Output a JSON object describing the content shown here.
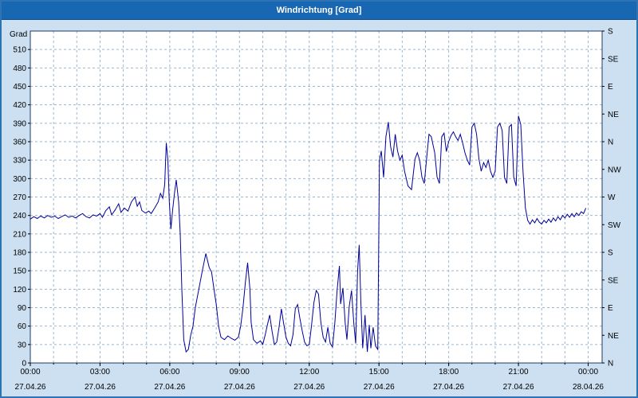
{
  "window": {
    "title": "Windrichtung [Grad]"
  },
  "colors": {
    "titlebar_bg": "#1767b2",
    "title_text": "#ffffff",
    "window_bg": "#cce0f2",
    "window_border": "#2e74b5",
    "plot_bg": "#ffffff",
    "plot_border": "#1f3864",
    "grid": "#9db6d0",
    "line": "#000099",
    "text": "#000000"
  },
  "chart_data": {
    "type": "line",
    "title": "Windrichtung [Grad]",
    "ylabel": "Grad",
    "xlabel": "",
    "ylim": [
      0,
      540
    ],
    "xlim_hours": [
      0,
      24.6
    ],
    "grid": {
      "vertical_every_hours": 1,
      "horizontal_every_deg": 30,
      "style": "dashed"
    },
    "legend_position": "none",
    "y_left_ticks": [
      0,
      30,
      60,
      90,
      120,
      150,
      180,
      210,
      240,
      270,
      300,
      330,
      360,
      390,
      420,
      450,
      480,
      510
    ],
    "y_right_labels": [
      {
        "deg": 540,
        "label": "S"
      },
      {
        "deg": 495,
        "label": "SE"
      },
      {
        "deg": 450,
        "label": "E"
      },
      {
        "deg": 405,
        "label": "NE"
      },
      {
        "deg": 360,
        "label": "N"
      },
      {
        "deg": 315,
        "label": "NW"
      },
      {
        "deg": 270,
        "label": "W"
      },
      {
        "deg": 225,
        "label": "SW"
      },
      {
        "deg": 180,
        "label": "S"
      },
      {
        "deg": 135,
        "label": "SE"
      },
      {
        "deg": 90,
        "label": "E"
      },
      {
        "deg": 45,
        "label": "NE"
      },
      {
        "deg": 0,
        "label": "N"
      }
    ],
    "x_ticks": [
      {
        "hour": 0,
        "time": "00:00",
        "date": "27.04.26"
      },
      {
        "hour": 3,
        "time": "03:00",
        "date": "27.04.26"
      },
      {
        "hour": 6,
        "time": "06:00",
        "date": "27.04.26"
      },
      {
        "hour": 9,
        "time": "09:00",
        "date": "27.04.26"
      },
      {
        "hour": 12,
        "time": "12:00",
        "date": "27.04.26"
      },
      {
        "hour": 15,
        "time": "15:00",
        "date": "27.04.26"
      },
      {
        "hour": 18,
        "time": "18:00",
        "date": "27.04.26"
      },
      {
        "hour": 21,
        "time": "21:00",
        "date": "27.04.26"
      },
      {
        "hour": 24,
        "time": "00:00",
        "date": "28.04.26"
      }
    ],
    "series": [
      {
        "name": "Windrichtung",
        "points": [
          [
            0,
            234
          ],
          [
            0.15,
            238
          ],
          [
            0.3,
            235
          ],
          [
            0.45,
            239
          ],
          [
            0.6,
            236
          ],
          [
            0.75,
            240
          ],
          [
            0.9,
            237
          ],
          [
            1.05,
            239
          ],
          [
            1.2,
            235
          ],
          [
            1.35,
            238
          ],
          [
            1.5,
            241
          ],
          [
            1.65,
            237
          ],
          [
            1.8,
            239
          ],
          [
            1.95,
            236
          ],
          [
            2.1,
            240
          ],
          [
            2.25,
            243
          ],
          [
            2.4,
            238
          ],
          [
            2.55,
            236
          ],
          [
            2.7,
            241
          ],
          [
            2.85,
            239
          ],
          [
            3,
            243
          ],
          [
            3.1,
            237
          ],
          [
            3.25,
            248
          ],
          [
            3.4,
            254
          ],
          [
            3.5,
            241
          ],
          [
            3.65,
            249
          ],
          [
            3.8,
            259
          ],
          [
            3.9,
            245
          ],
          [
            4.05,
            252
          ],
          [
            4.2,
            247
          ],
          [
            4.35,
            262
          ],
          [
            4.5,
            270
          ],
          [
            4.6,
            255
          ],
          [
            4.7,
            262
          ],
          [
            4.8,
            248
          ],
          [
            4.95,
            244
          ],
          [
            5.1,
            247
          ],
          [
            5.2,
            243
          ],
          [
            5.35,
            252
          ],
          [
            5.5,
            262
          ],
          [
            5.6,
            276
          ],
          [
            5.7,
            268
          ],
          [
            5.78,
            290
          ],
          [
            5.85,
            358
          ],
          [
            5.92,
            330
          ],
          [
            5.98,
            262
          ],
          [
            6.05,
            218
          ],
          [
            6.12,
            248
          ],
          [
            6.2,
            275
          ],
          [
            6.28,
            298
          ],
          [
            6.38,
            262
          ],
          [
            6.45,
            210
          ],
          [
            6.52,
            120
          ],
          [
            6.6,
            38
          ],
          [
            6.7,
            18
          ],
          [
            6.8,
            22
          ],
          [
            6.9,
            45
          ],
          [
            7,
            60
          ],
          [
            7.1,
            90
          ],
          [
            7.25,
            120
          ],
          [
            7.4,
            150
          ],
          [
            7.55,
            178
          ],
          [
            7.7,
            155
          ],
          [
            7.8,
            148
          ],
          [
            7.9,
            120
          ],
          [
            8,
            95
          ],
          [
            8.1,
            60
          ],
          [
            8.2,
            42
          ],
          [
            8.35,
            38
          ],
          [
            8.5,
            44
          ],
          [
            8.65,
            40
          ],
          [
            8.8,
            37
          ],
          [
            8.95,
            42
          ],
          [
            9.05,
            60
          ],
          [
            9.15,
            90
          ],
          [
            9.25,
            130
          ],
          [
            9.35,
            163
          ],
          [
            9.45,
            120
          ],
          [
            9.5,
            66
          ],
          [
            9.6,
            38
          ],
          [
            9.75,
            32
          ],
          [
            9.9,
            36
          ],
          [
            10,
            30
          ],
          [
            10.1,
            45
          ],
          [
            10.2,
            62
          ],
          [
            10.3,
            78
          ],
          [
            10.4,
            52
          ],
          [
            10.5,
            30
          ],
          [
            10.6,
            34
          ],
          [
            10.7,
            58
          ],
          [
            10.8,
            88
          ],
          [
            10.9,
            64
          ],
          [
            11,
            42
          ],
          [
            11.1,
            32
          ],
          [
            11.2,
            28
          ],
          [
            11.3,
            46
          ],
          [
            11.4,
            88
          ],
          [
            11.5,
            95
          ],
          [
            11.6,
            72
          ],
          [
            11.7,
            52
          ],
          [
            11.8,
            34
          ],
          [
            11.9,
            28
          ],
          [
            12,
            30
          ],
          [
            12.1,
            62
          ],
          [
            12.2,
            98
          ],
          [
            12.3,
            118
          ],
          [
            12.4,
            112
          ],
          [
            12.5,
            66
          ],
          [
            12.6,
            42
          ],
          [
            12.7,
            34
          ],
          [
            12.8,
            58
          ],
          [
            12.9,
            32
          ],
          [
            13,
            26
          ],
          [
            13.1,
            64
          ],
          [
            13.2,
            118
          ],
          [
            13.3,
            158
          ],
          [
            13.35,
            96
          ],
          [
            13.45,
            122
          ],
          [
            13.55,
            64
          ],
          [
            13.62,
            38
          ],
          [
            13.72,
            92
          ],
          [
            13.82,
            118
          ],
          [
            13.92,
            64
          ],
          [
            14,
            32
          ],
          [
            14.08,
            150
          ],
          [
            14.15,
            192
          ],
          [
            14.22,
            98
          ],
          [
            14.3,
            24
          ],
          [
            14.4,
            78
          ],
          [
            14.5,
            18
          ],
          [
            14.58,
            62
          ],
          [
            14.65,
            24
          ],
          [
            14.75,
            58
          ],
          [
            14.85,
            28
          ],
          [
            14.95,
            22
          ],
          [
            15.02,
            330
          ],
          [
            15.1,
            345
          ],
          [
            15.2,
            302
          ],
          [
            15.3,
            368
          ],
          [
            15.4,
            392
          ],
          [
            15.5,
            352
          ],
          [
            15.6,
            335
          ],
          [
            15.7,
            372
          ],
          [
            15.8,
            345
          ],
          [
            15.9,
            330
          ],
          [
            16,
            338
          ],
          [
            16.1,
            312
          ],
          [
            16.25,
            288
          ],
          [
            16.4,
            282
          ],
          [
            16.55,
            332
          ],
          [
            16.65,
            342
          ],
          [
            16.75,
            330
          ],
          [
            16.85,
            302
          ],
          [
            16.95,
            292
          ],
          [
            17.05,
            332
          ],
          [
            17.15,
            372
          ],
          [
            17.25,
            368
          ],
          [
            17.4,
            342
          ],
          [
            17.5,
            302
          ],
          [
            17.6,
            292
          ],
          [
            17.7,
            368
          ],
          [
            17.8,
            374
          ],
          [
            17.9,
            344
          ],
          [
            18,
            360
          ],
          [
            18.1,
            370
          ],
          [
            18.2,
            376
          ],
          [
            18.3,
            368
          ],
          [
            18.4,
            362
          ],
          [
            18.5,
            372
          ],
          [
            18.6,
            358
          ],
          [
            18.7,
            342
          ],
          [
            18.8,
            330
          ],
          [
            18.9,
            322
          ],
          [
            19,
            384
          ],
          [
            19.1,
            390
          ],
          [
            19.2,
            372
          ],
          [
            19.3,
            332
          ],
          [
            19.4,
            312
          ],
          [
            19.5,
            326
          ],
          [
            19.6,
            318
          ],
          [
            19.7,
            330
          ],
          [
            19.8,
            312
          ],
          [
            19.9,
            302
          ],
          [
            20,
            312
          ],
          [
            20.1,
            384
          ],
          [
            20.2,
            390
          ],
          [
            20.3,
            378
          ],
          [
            20.4,
            302
          ],
          [
            20.5,
            292
          ],
          [
            20.6,
            384
          ],
          [
            20.7,
            388
          ],
          [
            20.8,
            302
          ],
          [
            20.9,
            288
          ],
          [
            21,
            402
          ],
          [
            21.1,
            388
          ],
          [
            21.2,
            310
          ],
          [
            21.3,
            252
          ],
          [
            21.4,
            232
          ],
          [
            21.5,
            226
          ],
          [
            21.6,
            233
          ],
          [
            21.7,
            228
          ],
          [
            21.8,
            235
          ],
          [
            21.9,
            229
          ],
          [
            22,
            226
          ],
          [
            22.1,
            232
          ],
          [
            22.2,
            228
          ],
          [
            22.3,
            234
          ],
          [
            22.4,
            229
          ],
          [
            22.5,
            236
          ],
          [
            22.6,
            231
          ],
          [
            22.7,
            238
          ],
          [
            22.8,
            233
          ],
          [
            22.9,
            240
          ],
          [
            23,
            236
          ],
          [
            23.1,
            242
          ],
          [
            23.2,
            237
          ],
          [
            23.3,
            243
          ],
          [
            23.4,
            238
          ],
          [
            23.5,
            244
          ],
          [
            23.6,
            240
          ],
          [
            23.7,
            246
          ],
          [
            23.8,
            243
          ],
          [
            23.9,
            252
          ]
        ]
      }
    ]
  }
}
